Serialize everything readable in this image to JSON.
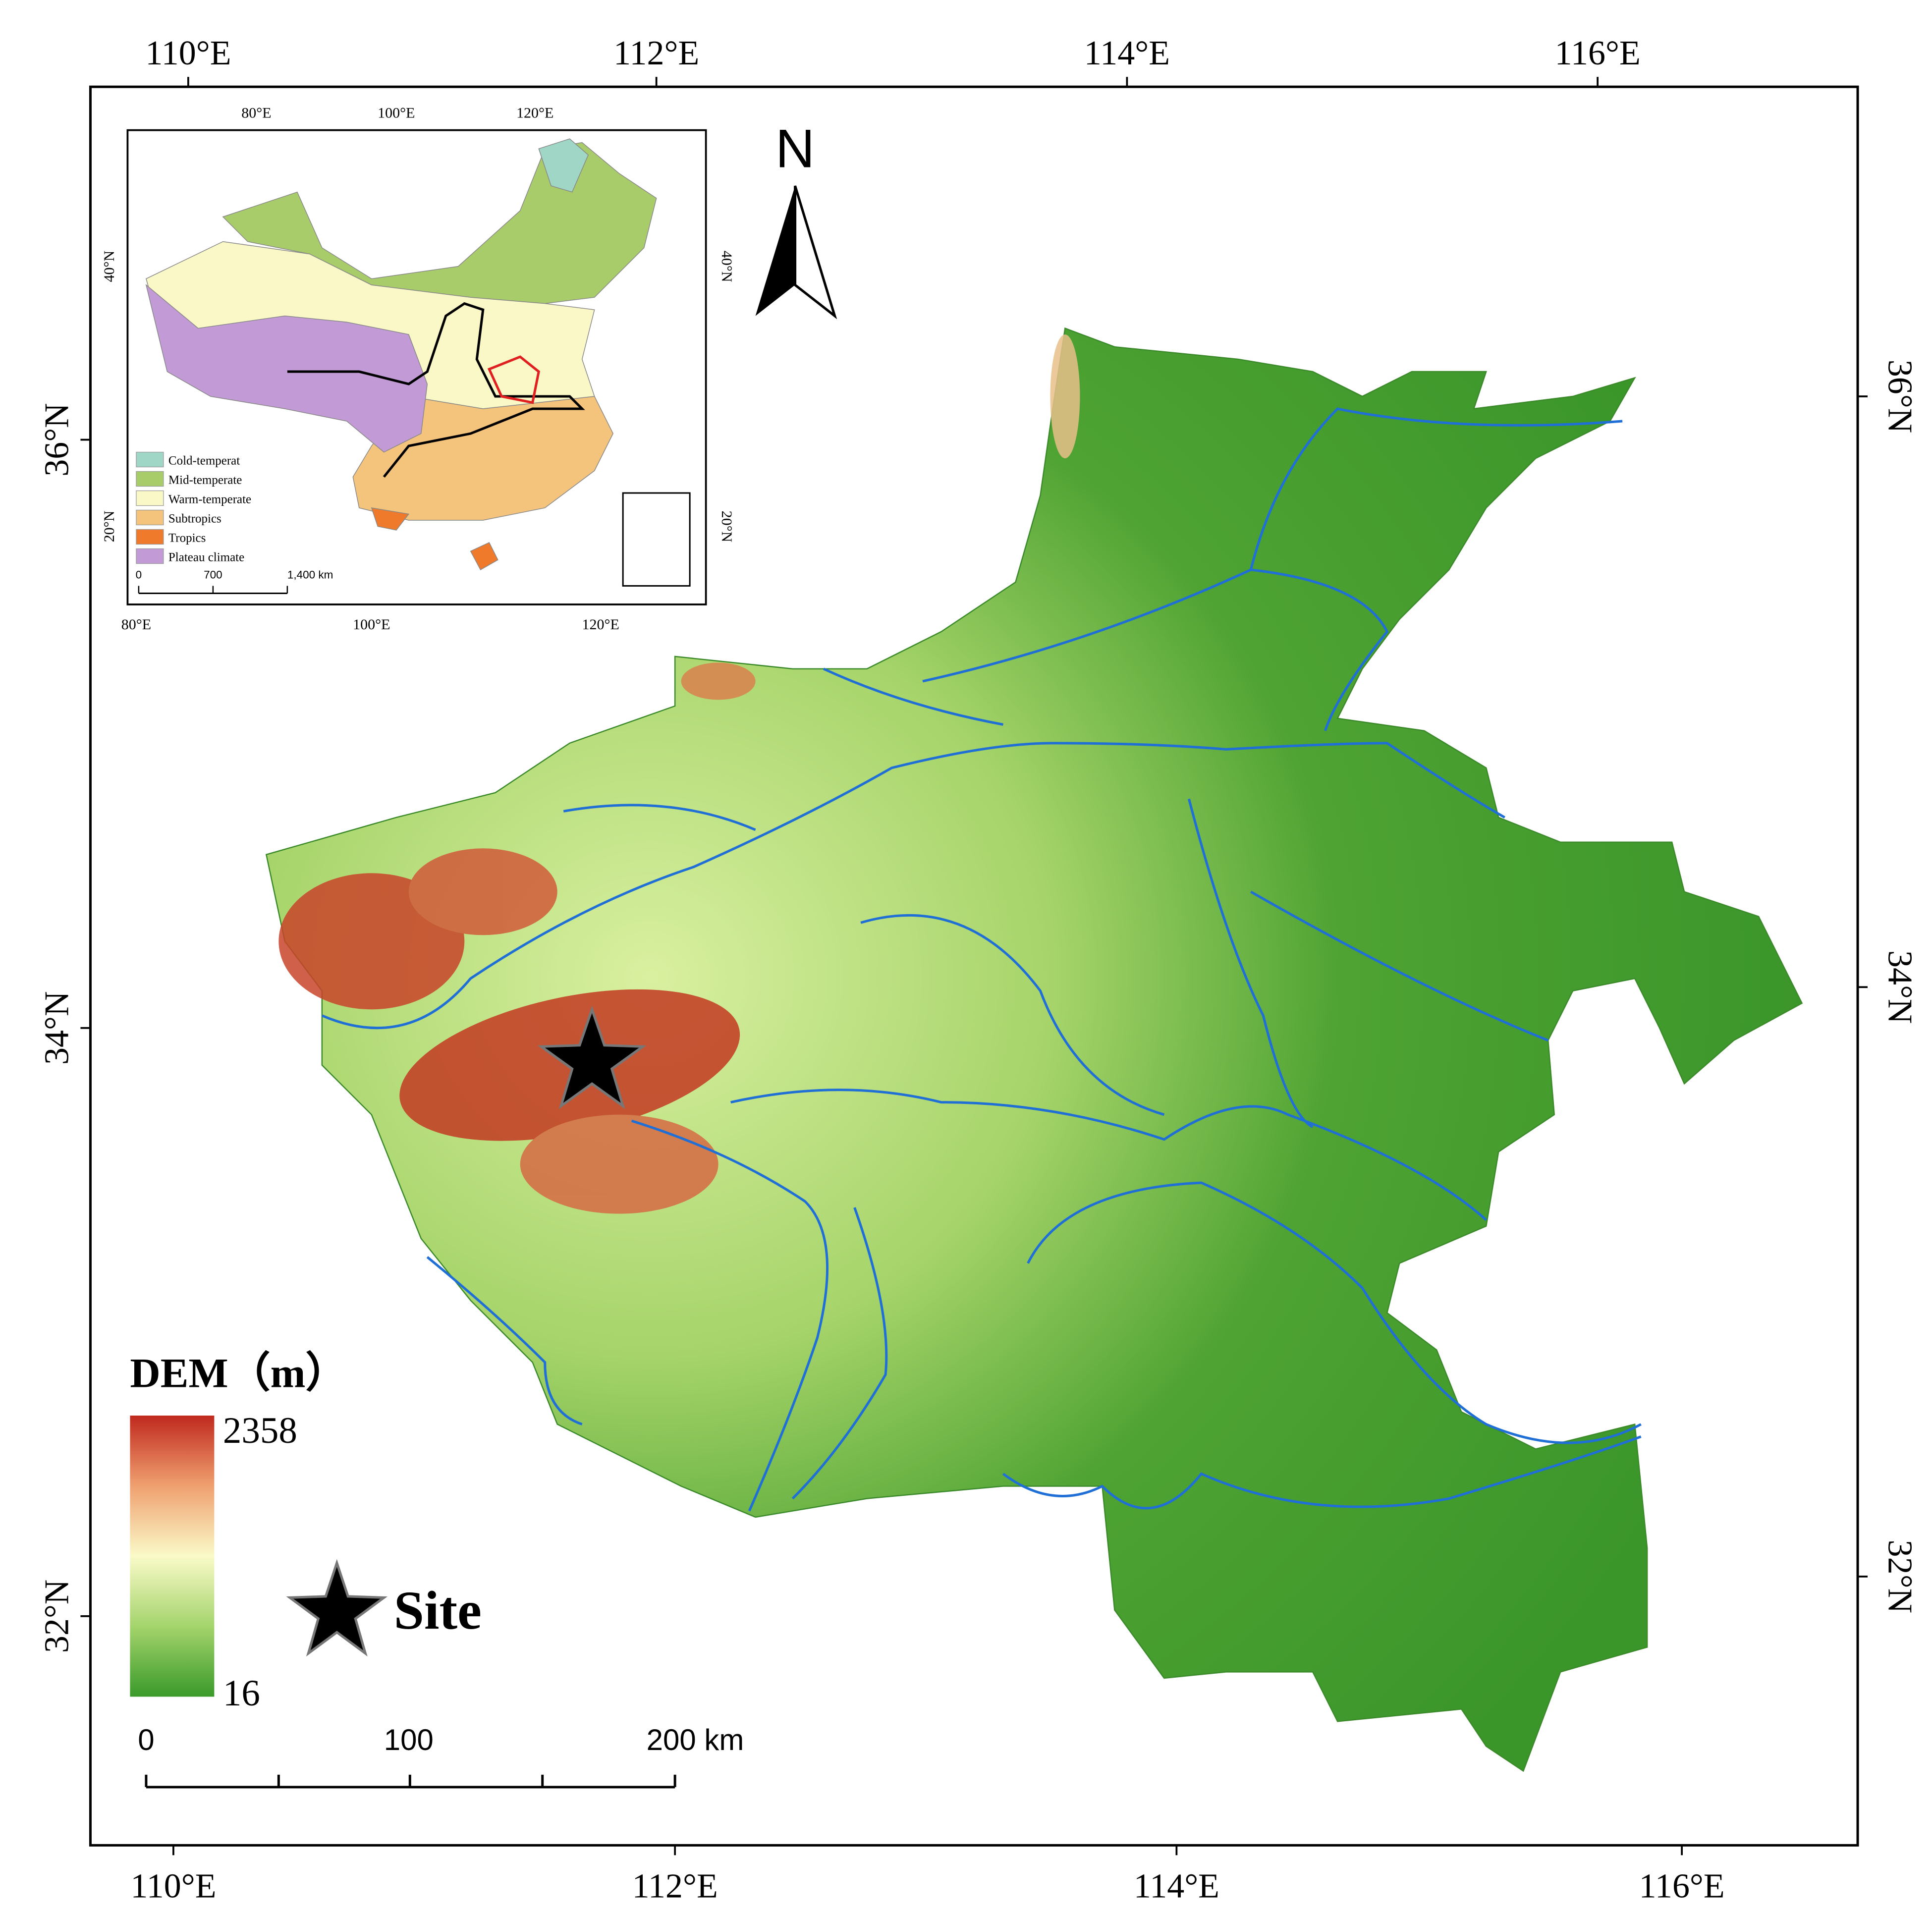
{
  "map": {
    "top_labels": [
      "110°E",
      "112°E",
      "114°E",
      "116°E"
    ],
    "bottom_labels": [
      "110°E",
      "112°E",
      "114°E",
      "116°E"
    ],
    "left_labels": [
      "36°N",
      "34°N",
      "32°N"
    ],
    "right_labels": [
      "36°N",
      "34°N",
      "32°N"
    ],
    "north": "N",
    "inset": {
      "top_labels": [
        "80°E",
        "100°E",
        "120°E"
      ],
      "bottom_labels": [
        "80°E",
        "100°E",
        "120°E"
      ],
      "left_labels": [
        "40°N",
        "20°N"
      ],
      "right_labels": [
        "40°N",
        "20°N"
      ],
      "legend": [
        {
          "label": "Cold-temperat",
          "color": "#9fd6c6"
        },
        {
          "label": "Mid-temperate",
          "color": "#a9cc6a"
        },
        {
          "label": "Warm-temperate",
          "color": "#fbf8c8"
        },
        {
          "label": "Subtropics",
          "color": "#f4c47c"
        },
        {
          "label": "Tropics",
          "color": "#ef7a2c"
        },
        {
          "label": "Plateau climate",
          "color": "#c29bd6"
        }
      ],
      "scale": [
        "0",
        "700",
        "1,400 km"
      ]
    },
    "legend": {
      "title": "DEM（m）",
      "max": 2358,
      "min": 16,
      "site": "Site"
    },
    "scale": [
      "0",
      "100",
      "200 km"
    ]
  }
}
